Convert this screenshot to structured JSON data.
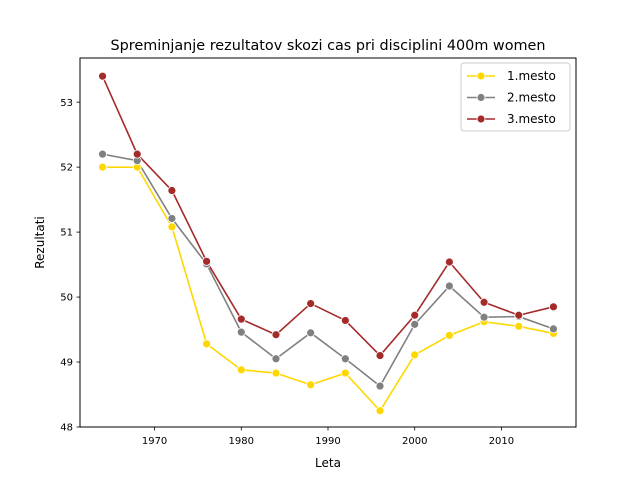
{
  "chart_data": {
    "type": "line",
    "title": "Spreminjanje rezultatov skozi cas pri disciplini 400m women",
    "xlabel": "Leta",
    "ylabel": "Rezultati",
    "xlim": [
      1961.4,
      2018.6
    ],
    "ylim": [
      48.0,
      53.68
    ],
    "xticks": [
      1970,
      1980,
      1990,
      2000,
      2010
    ],
    "yticks": [
      48,
      49,
      50,
      51,
      52,
      53
    ],
    "grid": false,
    "legend_position": "top-right",
    "x": [
      1964,
      1968,
      1972,
      1976,
      1980,
      1984,
      1988,
      1992,
      1996,
      2000,
      2004,
      2008,
      2012,
      2016
    ],
    "series": [
      {
        "name": "1.mesto",
        "color": "#ffd700",
        "values": [
          52.0,
          52.0,
          51.08,
          49.28,
          48.88,
          48.83,
          48.65,
          48.83,
          48.25,
          49.11,
          49.41,
          49.62,
          49.55,
          49.44
        ]
      },
      {
        "name": "2.mesto",
        "color": "#808080",
        "values": [
          52.2,
          52.1,
          51.21,
          50.51,
          49.46,
          49.05,
          49.45,
          49.05,
          48.63,
          49.58,
          50.17,
          49.69,
          49.7,
          49.51
        ]
      },
      {
        "name": "3.mesto",
        "color": "#a52a2a",
        "values": [
          53.4,
          52.2,
          51.64,
          50.55,
          49.66,
          49.42,
          49.9,
          49.64,
          49.1,
          49.72,
          50.54,
          49.92,
          49.72,
          49.85
        ]
      }
    ]
  }
}
